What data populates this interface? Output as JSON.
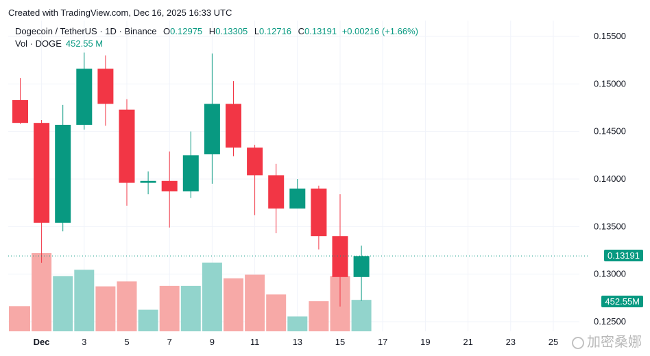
{
  "attribution": "Created with TradingView.com, Dec 16, 2025 16:33 UTC",
  "legend": {
    "symbol": "Dogecoin / TetherUS · 1D · Binance",
    "o_label": "O",
    "o_value": "0.12975",
    "h_label": "H",
    "h_value": "0.13305",
    "l_label": "L",
    "l_value": "0.12716",
    "c_label": "C",
    "c_value": "0.13191",
    "change": "+0.00216 (+1.66%)",
    "vol_label": "Vol · DOGE",
    "vol_value": "452.55 M"
  },
  "price_tag": "0.13191",
  "volume_tag": "452.55M",
  "watermark": "加密桑娜",
  "colors": {
    "up": "#089981",
    "down": "#f23645",
    "up_vol": "#92d4cc",
    "down_vol": "#f7a9a7",
    "grid": "#f0f3fa"
  },
  "chart_data": {
    "type": "candlestick",
    "title": "Dogecoin / TetherUS · 1D · Binance",
    "y_ticks": [
      "0.15500",
      "0.15000",
      "0.14500",
      "0.14000",
      "0.13500",
      "0.13000",
      "0.12500"
    ],
    "ylim": [
      0.124,
      0.1565
    ],
    "x_ticks": [
      {
        "label": "Dec",
        "day": 1,
        "bold": true
      },
      {
        "label": "3",
        "day": 3
      },
      {
        "label": "5",
        "day": 5
      },
      {
        "label": "7",
        "day": 7
      },
      {
        "label": "9",
        "day": 9
      },
      {
        "label": "11",
        "day": 11
      },
      {
        "label": "13",
        "day": 13
      },
      {
        "label": "15",
        "day": 15
      },
      {
        "label": "17",
        "day": 17
      },
      {
        "label": "19",
        "day": 19
      },
      {
        "label": "21",
        "day": 21
      },
      {
        "label": "23",
        "day": 23
      },
      {
        "label": "25",
        "day": 25
      }
    ],
    "last_price": 0.13191,
    "candles": [
      {
        "day": 0,
        "open": 0.1483,
        "high": 0.1506,
        "low": 0.1458,
        "close": 0.1459,
        "volume": 280
      },
      {
        "day": 1,
        "open": 0.1459,
        "high": 0.1462,
        "low": 0.1312,
        "close": 0.1354,
        "volume": 870
      },
      {
        "day": 2,
        "open": 0.1354,
        "high": 0.1478,
        "low": 0.1345,
        "close": 0.1457,
        "volume": 615
      },
      {
        "day": 3,
        "open": 0.1457,
        "high": 0.1533,
        "low": 0.1452,
        "close": 0.1516,
        "volume": 685
      },
      {
        "day": 4,
        "open": 0.1516,
        "high": 0.153,
        "low": 0.1456,
        "close": 0.1479,
        "volume": 500
      },
      {
        "day": 5,
        "open": 0.1473,
        "high": 0.1484,
        "low": 0.1372,
        "close": 0.1396,
        "volume": 555
      },
      {
        "day": 6,
        "open": 0.1396,
        "high": 0.1408,
        "low": 0.1384,
        "close": 0.1398,
        "volume": 240
      },
      {
        "day": 7,
        "open": 0.1398,
        "high": 0.1429,
        "low": 0.1349,
        "close": 0.1387,
        "volume": 505
      },
      {
        "day": 8,
        "open": 0.1387,
        "high": 0.145,
        "low": 0.138,
        "close": 0.1425,
        "volume": 505
      },
      {
        "day": 9,
        "open": 0.1426,
        "high": 0.1532,
        "low": 0.1395,
        "close": 0.1479,
        "volume": 765
      },
      {
        "day": 10,
        "open": 0.1479,
        "high": 0.1503,
        "low": 0.1424,
        "close": 0.1433,
        "volume": 590
      },
      {
        "day": 11,
        "open": 0.1433,
        "high": 0.1436,
        "low": 0.1362,
        "close": 0.1404,
        "volume": 630
      },
      {
        "day": 12,
        "open": 0.1404,
        "high": 0.1416,
        "low": 0.1343,
        "close": 0.1369,
        "volume": 410
      },
      {
        "day": 13,
        "open": 0.1369,
        "high": 0.14,
        "low": 0.1369,
        "close": 0.139,
        "volume": 165
      },
      {
        "day": 14,
        "open": 0.139,
        "high": 0.1393,
        "low": 0.1326,
        "close": 0.134,
        "volume": 335
      },
      {
        "day": 15,
        "open": 0.134,
        "high": 0.1384,
        "low": 0.1266,
        "close": 0.1297,
        "volume": 615
      },
      {
        "day": 16,
        "open": 0.1297,
        "high": 0.133,
        "low": 0.1272,
        "close": 0.1319,
        "volume": 350
      }
    ]
  }
}
